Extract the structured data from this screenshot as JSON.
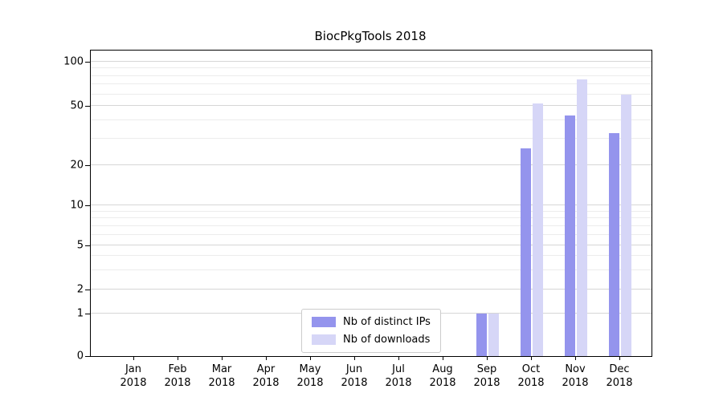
{
  "chart_data": {
    "type": "bar",
    "title": "BiocPkgTools 2018",
    "x_months": [
      "Jan",
      "Feb",
      "Mar",
      "Apr",
      "May",
      "Jun",
      "Jul",
      "Aug",
      "Sep",
      "Oct",
      "Nov",
      "Dec"
    ],
    "x_year": "2018",
    "series": [
      {
        "name": "Nb of distinct IPs",
        "color": "#9494ed",
        "values": [
          0,
          0,
          0,
          0,
          0,
          0,
          0,
          0,
          1,
          26,
          43,
          33
        ]
      },
      {
        "name": "Nb of downloads",
        "color": "#d6d6f7",
        "values": [
          0,
          0,
          0,
          0,
          0,
          0,
          0,
          0,
          1,
          52,
          76,
          60
        ]
      }
    ],
    "y_scale": "log",
    "y_ticks": [
      0,
      1,
      2,
      5,
      10,
      20,
      50,
      100
    ],
    "y_minor_ticks": [
      3,
      4,
      6,
      7,
      8,
      9,
      30,
      40,
      60,
      70,
      80,
      90
    ],
    "ylim": [
      0,
      110
    ],
    "grid": "horizontal",
    "legend": {
      "position": "bottom-center"
    }
  }
}
